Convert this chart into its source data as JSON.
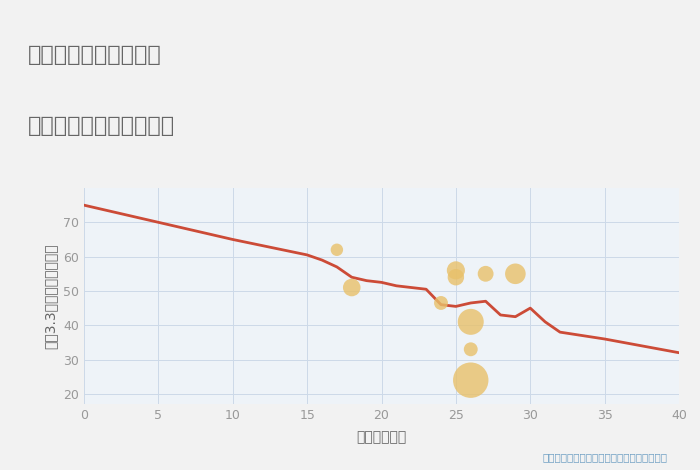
{
  "title_line1": "兵庫県西宮市清瀬台の",
  "title_line2": "築年数別中古戸建て価格",
  "xlabel": "築年数（年）",
  "ylabel": "坪（3.3㎡）単価（万円）",
  "fig_bg_color": "#f2f2f2",
  "plot_bg_color": "#eef3f8",
  "title_bg_color": "#ffffff",
  "line_color": "#cc4b37",
  "line_x": [
    0,
    5,
    10,
    15,
    16,
    17,
    18,
    19,
    20,
    21,
    22,
    23,
    24,
    25,
    26,
    27,
    28,
    29,
    30,
    31,
    32,
    35,
    40
  ],
  "line_y": [
    75,
    70,
    65,
    60.5,
    59,
    57,
    54,
    53,
    52.5,
    51.5,
    51,
    50.5,
    46,
    45.5,
    46.5,
    47,
    43,
    42.5,
    45,
    41,
    38,
    36,
    32
  ],
  "scatter_x": [
    17,
    18,
    24,
    25,
    25,
    26,
    27,
    26,
    26,
    29
  ],
  "scatter_y": [
    62,
    51,
    46.5,
    56,
    54,
    41,
    55,
    33,
    24,
    55
  ],
  "scatter_sizes": [
    80,
    160,
    100,
    170,
    140,
    350,
    130,
    100,
    650,
    220
  ],
  "scatter_color": "#e8c06a",
  "scatter_alpha": 0.8,
  "annotation": "円の大きさは、取引のあった物件面積を示す",
  "annotation_color": "#6b9dc2",
  "xlim": [
    0,
    40
  ],
  "ylim": [
    17,
    80
  ],
  "xticks": [
    0,
    5,
    10,
    15,
    20,
    25,
    30,
    35,
    40
  ],
  "yticks": [
    20,
    30,
    40,
    50,
    60,
    70
  ],
  "grid_color": "#ccd9e8",
  "title_color": "#666666",
  "axis_label_color": "#666666",
  "tick_color": "#999999",
  "title_fontsize": 16,
  "label_fontsize": 10,
  "tick_fontsize": 9
}
